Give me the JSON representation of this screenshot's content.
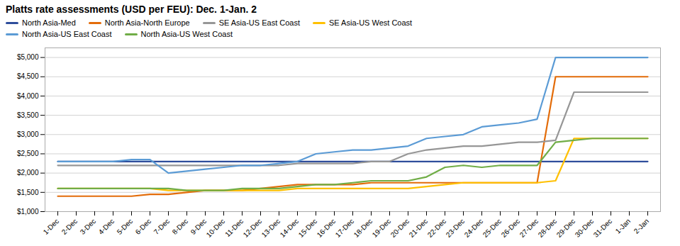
{
  "chart_data": {
    "type": "line",
    "title": "Platts rate assessments (USD per FEU): Dec. 1-Jan. 2",
    "categories": [
      "1-Dec",
      "2-Dec",
      "3-Dec",
      "4-Dec",
      "5-Dec",
      "6-Dec",
      "7-Dec",
      "8-Dec",
      "9-Dec",
      "10-Dec",
      "11-Dec",
      "12-Dec",
      "13-Dec",
      "14-Dec",
      "15-Dec",
      "16-Dec",
      "17-Dec",
      "18-Dec",
      "19-Dec",
      "20-Dec",
      "21-Dec",
      "22-Dec",
      "23-Dec",
      "24-Dec",
      "25-Dec",
      "26-Dec",
      "27-Dec",
      "28-Dec",
      "29-Dec",
      "30-Dec",
      "31-Dec",
      "1-Jan",
      "2-Jan"
    ],
    "series": [
      {
        "name": "North Asia-Med",
        "color": "#2E4D9B",
        "values": [
          2300,
          2300,
          2300,
          2300,
          2300,
          2300,
          2300,
          2300,
          2300,
          2300,
          2300,
          2300,
          2300,
          2300,
          2300,
          2300,
          2300,
          2300,
          2300,
          2300,
          2300,
          2300,
          2300,
          2300,
          2300,
          2300,
          2300,
          2300,
          2300,
          2300,
          2300,
          2300,
          2300
        ]
      },
      {
        "name": "North Asia-North Europe",
        "color": "#E36C09",
        "values": [
          1400,
          1400,
          1400,
          1400,
          1400,
          1450,
          1450,
          1500,
          1550,
          1550,
          1550,
          1600,
          1650,
          1700,
          1700,
          1700,
          1700,
          1750,
          1750,
          1750,
          1750,
          1750,
          1750,
          1750,
          1750,
          1750,
          1750,
          4500,
          4500,
          4500,
          4500,
          4500,
          4500
        ]
      },
      {
        "name": "SE Asia-US East Coast",
        "color": "#969696",
        "values": [
          2200,
          2200,
          2200,
          2200,
          2200,
          2200,
          2200,
          2200,
          2200,
          2200,
          2200,
          2200,
          2200,
          2250,
          2250,
          2250,
          2250,
          2300,
          2300,
          2500,
          2600,
          2650,
          2700,
          2700,
          2750,
          2800,
          2800,
          2850,
          4100,
          4100,
          4100,
          4100,
          4100
        ]
      },
      {
        "name": "SE Asia-US West Coast",
        "color": "#FFC000",
        "values": [
          1600,
          1600,
          1600,
          1600,
          1600,
          1600,
          1550,
          1550,
          1550,
          1550,
          1550,
          1550,
          1550,
          1600,
          1600,
          1600,
          1600,
          1600,
          1600,
          1600,
          1650,
          1700,
          1750,
          1750,
          1750,
          1750,
          1750,
          1800,
          2900,
          2900,
          2900,
          2900,
          2900
        ]
      },
      {
        "name": "North Asia-US East Coast",
        "color": "#5B9BD5",
        "values": [
          2300,
          2300,
          2300,
          2300,
          2350,
          2350,
          2000,
          2050,
          2100,
          2150,
          2200,
          2200,
          2250,
          2300,
          2500,
          2550,
          2600,
          2600,
          2650,
          2700,
          2900,
          2950,
          3000,
          3200,
          3250,
          3300,
          3400,
          5000,
          5000,
          5000,
          5000,
          5000,
          5000
        ]
      },
      {
        "name": "North Asia-US West Coast",
        "color": "#70AD47",
        "values": [
          1600,
          1600,
          1600,
          1600,
          1600,
          1600,
          1600,
          1550,
          1550,
          1550,
          1600,
          1600,
          1600,
          1650,
          1700,
          1700,
          1750,
          1800,
          1800,
          1800,
          1900,
          2150,
          2200,
          2150,
          2200,
          2200,
          2200,
          2800,
          2850,
          2900,
          2900,
          2900,
          2900
        ]
      }
    ],
    "ylim": [
      1000,
      5250
    ],
    "yticks": [
      {
        "value": 1000,
        "label": "$1,000"
      },
      {
        "value": 1500,
        "label": "$1,500"
      },
      {
        "value": 2000,
        "label": "$2,000"
      },
      {
        "value": 2500,
        "label": "$2,500"
      },
      {
        "value": 3000,
        "label": "$3,000"
      },
      {
        "value": 3500,
        "label": "$3,500"
      },
      {
        "value": 4000,
        "label": "$4,000"
      },
      {
        "value": 4500,
        "label": "$4,500"
      },
      {
        "value": 5000,
        "label": "$5,000"
      }
    ],
    "grid": true,
    "legend": "upper left"
  }
}
